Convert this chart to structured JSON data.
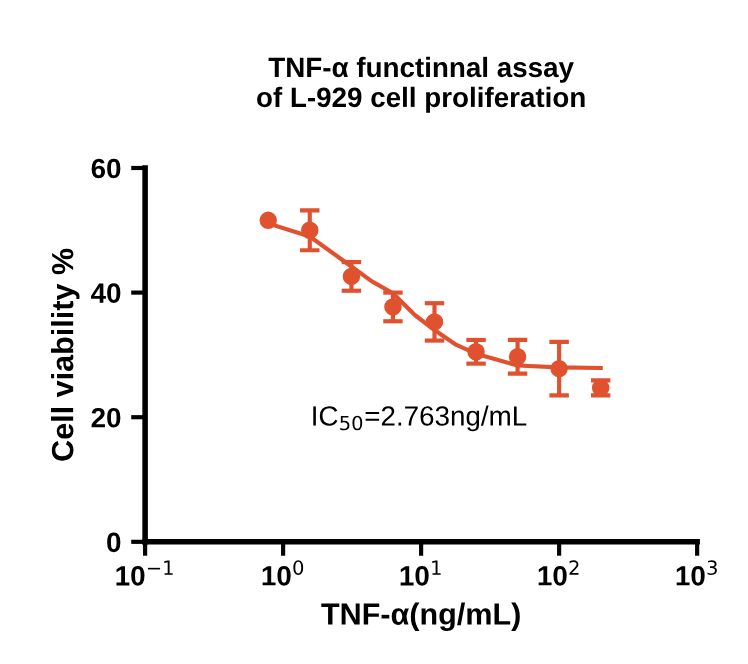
{
  "chart_data": {
    "type": "scatter",
    "title": "TNF-α functinnal assay\nof L-929 cell proliferation",
    "xlabel": "TNF-α(ng/mL)",
    "ylabel": "Cell viability %",
    "log": "x",
    "xlim": [
      0.1,
      1000
    ],
    "xticks": [
      {
        "value": 0.1,
        "label": "10$^{−1}$"
      },
      {
        "value": 1,
        "label": "10$^{0}$"
      },
      {
        "value": 10,
        "label": "10$^{1}$"
      },
      {
        "value": 100,
        "label": "10$^{2}$"
      },
      {
        "value": 1000,
        "label": "10$^{3}$"
      }
    ],
    "ylim": [
      0,
      60
    ],
    "yticks": [
      0,
      20,
      40,
      60
    ],
    "grid": false,
    "annotations": [
      "IC$_{50}$=2.763ng/mL"
    ],
    "series": [
      {
        "marker": "circle",
        "color": "#e0522f",
        "x": [
          0.78,
          1.56,
          3.125,
          6.25,
          12.5,
          25,
          50,
          100,
          200
        ],
        "values": [
          51.6,
          50.0,
          42.6,
          37.7,
          35.3,
          30.5,
          29.7,
          27.8,
          24.7
        ],
        "errors": [
          null,
          3.2,
          2.3,
          2.3,
          3.0,
          1.9,
          2.7,
          4.3,
          1.2
        ]
      },
      {
        "type": "line",
        "color": "#e0522f",
        "x": [
          0.78,
          1.56,
          3.125,
          4.4,
          6.25,
          9,
          12.5,
          18,
          25,
          50,
          100,
          200
        ],
        "values": [
          51.1,
          49.0,
          44.2,
          41.8,
          39.9,
          36.4,
          34.0,
          31.6,
          30.2,
          28.3,
          28.0,
          27.9
        ]
      }
    ]
  }
}
